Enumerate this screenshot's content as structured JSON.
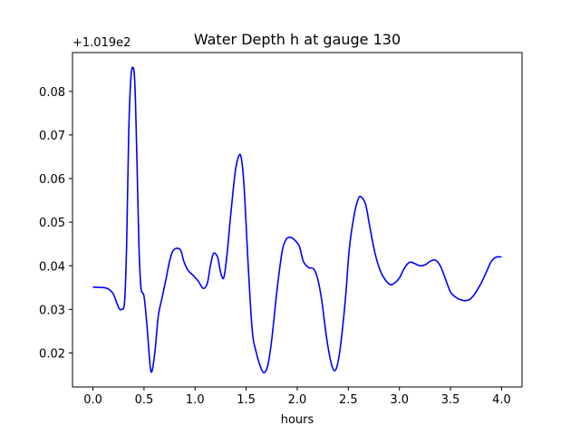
{
  "chart_data": {
    "type": "line",
    "title": "Water Depth h at gauge 130",
    "xlabel": "hours",
    "ylabel": "",
    "offset_label": "+1.019e2",
    "xlim": [
      -0.2,
      4.2
    ],
    "ylim": [
      0.0122,
      0.0889
    ],
    "xticks": [
      0.0,
      0.5,
      1.0,
      1.5,
      2.0,
      2.5,
      3.0,
      3.5,
      4.0
    ],
    "xtick_labels": [
      "0.0",
      "0.5",
      "1.0",
      "1.5",
      "2.0",
      "2.5",
      "3.0",
      "3.5",
      "4.0"
    ],
    "yticks": [
      0.02,
      0.03,
      0.04,
      0.05,
      0.06,
      0.07,
      0.08
    ],
    "ytick_labels": [
      "0.02",
      "0.03",
      "0.04",
      "0.05",
      "0.06",
      "0.07",
      "0.08"
    ],
    "grid": false,
    "series": [
      {
        "name": "",
        "color": "#0000ff",
        "points": [
          [
            0.0,
            0.0351
          ],
          [
            0.1,
            0.035
          ],
          [
            0.15,
            0.0347
          ],
          [
            0.2,
            0.0335
          ],
          [
            0.25,
            0.0305
          ],
          [
            0.28,
            0.03
          ],
          [
            0.31,
            0.0318
          ],
          [
            0.33,
            0.045
          ],
          [
            0.35,
            0.07
          ],
          [
            0.37,
            0.0825
          ],
          [
            0.39,
            0.0855
          ],
          [
            0.41,
            0.082
          ],
          [
            0.43,
            0.065
          ],
          [
            0.45,
            0.045
          ],
          [
            0.47,
            0.035
          ],
          [
            0.5,
            0.033
          ],
          [
            0.53,
            0.026
          ],
          [
            0.56,
            0.017
          ],
          [
            0.58,
            0.016
          ],
          [
            0.61,
            0.021
          ],
          [
            0.64,
            0.0285
          ],
          [
            0.68,
            0.033
          ],
          [
            0.72,
            0.0375
          ],
          [
            0.75,
            0.041
          ],
          [
            0.78,
            0.0433
          ],
          [
            0.82,
            0.044
          ],
          [
            0.86,
            0.0435
          ],
          [
            0.89,
            0.041
          ],
          [
            0.93,
            0.039
          ],
          [
            0.98,
            0.0378
          ],
          [
            1.03,
            0.0365
          ],
          [
            1.08,
            0.0348
          ],
          [
            1.12,
            0.036
          ],
          [
            1.15,
            0.04
          ],
          [
            1.18,
            0.0428
          ],
          [
            1.22,
            0.042
          ],
          [
            1.25,
            0.0385
          ],
          [
            1.28,
            0.0372
          ],
          [
            1.31,
            0.042
          ],
          [
            1.35,
            0.052
          ],
          [
            1.39,
            0.061
          ],
          [
            1.42,
            0.0647
          ],
          [
            1.45,
            0.065
          ],
          [
            1.48,
            0.058
          ],
          [
            1.52,
            0.04
          ],
          [
            1.56,
            0.025
          ],
          [
            1.6,
            0.02
          ],
          [
            1.63,
            0.0175
          ],
          [
            1.67,
            0.0155
          ],
          [
            1.71,
            0.017
          ],
          [
            1.75,
            0.023
          ],
          [
            1.8,
            0.034
          ],
          [
            1.85,
            0.043
          ],
          [
            1.89,
            0.046
          ],
          [
            1.93,
            0.0465
          ],
          [
            1.97,
            0.046
          ],
          [
            2.02,
            0.0445
          ],
          [
            2.06,
            0.041
          ],
          [
            2.11,
            0.0396
          ],
          [
            2.16,
            0.0393
          ],
          [
            2.2,
            0.037
          ],
          [
            2.24,
            0.032
          ],
          [
            2.29,
            0.023
          ],
          [
            2.34,
            0.017
          ],
          [
            2.38,
            0.0163
          ],
          [
            2.42,
            0.021
          ],
          [
            2.47,
            0.032
          ],
          [
            2.51,
            0.044
          ],
          [
            2.56,
            0.052
          ],
          [
            2.6,
            0.0555
          ],
          [
            2.63,
            0.0557
          ],
          [
            2.67,
            0.054
          ],
          [
            2.71,
            0.049
          ],
          [
            2.76,
            0.043
          ],
          [
            2.81,
            0.039
          ],
          [
            2.86,
            0.0368
          ],
          [
            2.91,
            0.0357
          ],
          [
            2.95,
            0.036
          ],
          [
            3.0,
            0.0372
          ],
          [
            3.05,
            0.0395
          ],
          [
            3.1,
            0.0408
          ],
          [
            3.15,
            0.0405
          ],
          [
            3.2,
            0.04
          ],
          [
            3.25,
            0.0402
          ],
          [
            3.3,
            0.041
          ],
          [
            3.35,
            0.0413
          ],
          [
            3.4,
            0.04
          ],
          [
            3.45,
            0.037
          ],
          [
            3.5,
            0.034
          ],
          [
            3.55,
            0.0328
          ],
          [
            3.6,
            0.0322
          ],
          [
            3.65,
            0.032
          ],
          [
            3.7,
            0.0325
          ],
          [
            3.75,
            0.034
          ],
          [
            3.8,
            0.036
          ],
          [
            3.85,
            0.0385
          ],
          [
            3.9,
            0.041
          ],
          [
            3.95,
            0.042
          ],
          [
            4.0,
            0.042
          ]
        ]
      }
    ]
  }
}
